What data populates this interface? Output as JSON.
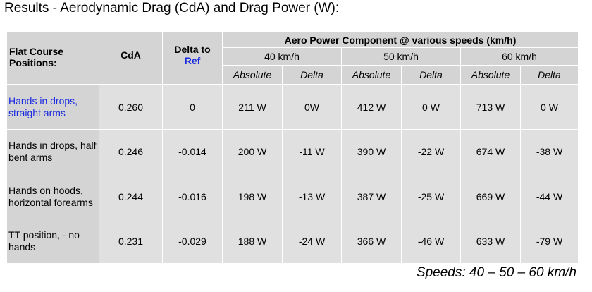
{
  "title": "Results - Aerodynamic Drag (CdA) and Drag Power (W):",
  "header": {
    "positions_label": "Flat Course Positions:",
    "cda_label": "CdA",
    "delta_label": "Delta to",
    "ref_label": "Ref",
    "power_label": "Aero Power Component  @ various speeds (km/h)",
    "speeds": [
      "40 km/h",
      "50 km/h",
      "60 km/h"
    ],
    "sub": [
      "Absolute",
      "Delta",
      "Absolute",
      "Delta",
      "Absolute",
      "Delta"
    ]
  },
  "rows": [
    {
      "position": "Hands in drops, straight arms",
      "reference": true,
      "cda": "0.260",
      "delta": "0",
      "values": [
        "211 W",
        "0W",
        "412 W",
        "0 W",
        "713 W",
        "0 W"
      ]
    },
    {
      "position": "Hands in drops, half bent arms",
      "reference": false,
      "cda": "0.246",
      "delta": "-0.014",
      "values": [
        "200 W",
        "-11 W",
        "390 W",
        "-22 W",
        "674 W",
        "-38 W"
      ]
    },
    {
      "position": "Hands on hoods, horizontal forearms",
      "reference": false,
      "cda": "0.244",
      "delta": "-0.016",
      "values": [
        "198 W",
        "-13 W",
        "387 W",
        "-25 W",
        "669 W",
        "-44 W"
      ]
    },
    {
      "position": "TT position, - no hands",
      "reference": false,
      "cda": "0.231",
      "delta": "-0.029",
      "values": [
        "188 W",
        "-24 W",
        "366 W",
        "-46 W",
        "633 W",
        "-79 W"
      ]
    }
  ],
  "footer": "Speeds: 40 – 50 – 60 km/h",
  "colors": {
    "header_bg": "#d4d4d4",
    "cell_bg": "#e0e0e0",
    "reference_text": "#1a2ae0"
  }
}
